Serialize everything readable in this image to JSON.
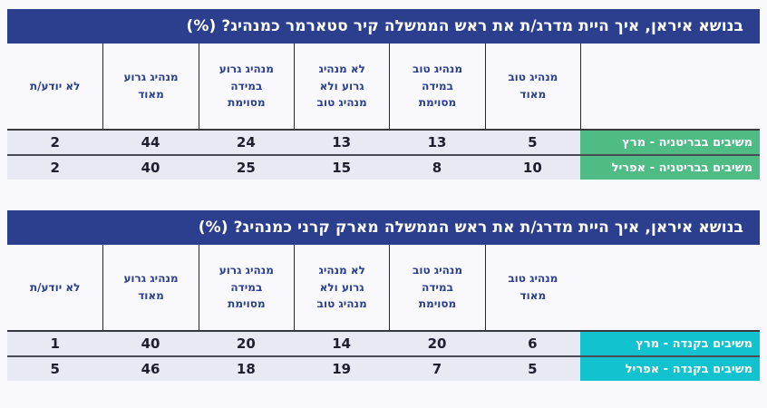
{
  "colors": {
    "title_bg": "#2b3f8e",
    "header_text": "#2b3f8e",
    "row_bg": "#e9e9f4",
    "britain_accent": "#4fbc86",
    "canada_accent": "#12c2cf",
    "page_bg": "#f8f8fd"
  },
  "chart_data": [
    {
      "type": "table",
      "title": "בנושא איראן, איך היית מדרג/ת את ראש הממשלה קיר סטארמר כמנהיג? (%)",
      "accent": "#4fbc86",
      "columns": [
        "מנהיג טוב מאוד",
        "מנהיג טוב במידה מסוימת",
        "לא מנהיג גרוע ולא מנהיג טוב",
        "מנהיג גרוע במידה מסוימת",
        "מנהיג גרוע מאוד",
        "לא יודע/ת"
      ],
      "rows": [
        {
          "label": "משיבים בבריטניה - מרץ",
          "values": [
            5,
            13,
            13,
            24,
            44,
            2
          ]
        },
        {
          "label": "משיבים בבריטניה - אפריל",
          "values": [
            10,
            8,
            15,
            25,
            40,
            2
          ]
        }
      ]
    },
    {
      "type": "table",
      "title": "בנושא איראן, איך היית מדרג/ת את ראש הממשלה מארק קרני כמנהיג? (%)",
      "accent": "#12c2cf",
      "columns": [
        "מנהיג טוב מאוד",
        "מנהיג טוב במידה מסוימת",
        "לא מנהיג גרוע ולא מנהיג טוב",
        "מנהיג גרוע במידה מסוימת",
        "מנהיג גרוע מאוד",
        "לא יודע/ת"
      ],
      "rows": [
        {
          "label": "משיבים בקנדה - מרץ",
          "values": [
            6,
            20,
            14,
            20,
            40,
            1
          ]
        },
        {
          "label": "משיבים בקנדה - אפריל",
          "values": [
            5,
            7,
            19,
            18,
            46,
            5
          ]
        }
      ]
    }
  ]
}
